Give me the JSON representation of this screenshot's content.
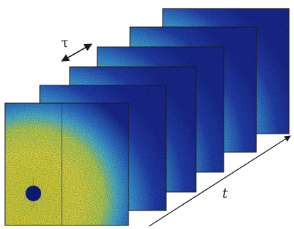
{
  "diagram": {
    "frame_count": 6,
    "labels": {
      "frame_spacing": "τ",
      "time_axis": "t"
    },
    "colors": {
      "frame_outline": "#1a1a1a",
      "arrow": "#1a1a1a",
      "edge_blue": "#1b2a8c",
      "mid_blue": "#2f6fc4",
      "cyan": "#4fb2c9",
      "center_yellow": "#d9d23a",
      "bright_yellow": "#e6dc4a",
      "beamstop": "#0e1a6a"
    }
  }
}
